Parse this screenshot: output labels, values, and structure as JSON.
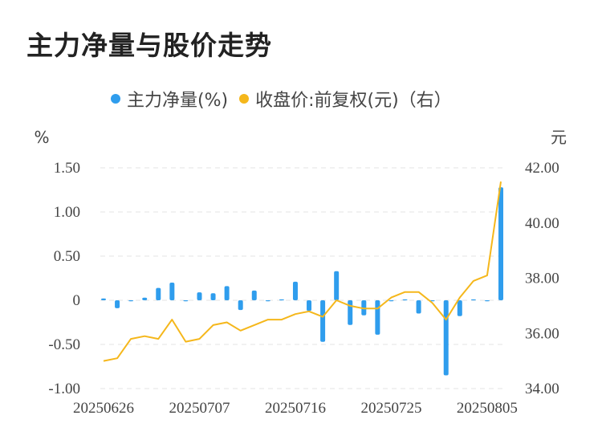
{
  "title": "主力净量与股价走势",
  "chart_data": {
    "type": "bar+line",
    "legend": [
      {
        "label": "主力净量(%)",
        "color": "#2f9ded"
      },
      {
        "label": "收盘价:前复权(元)（右）",
        "color": "#f5b71b"
      }
    ],
    "left_unit": "%",
    "right_unit": "元",
    "left_ticks": [
      "1.50",
      "1.00",
      "0.50",
      "0",
      "-0.50",
      "-1.00"
    ],
    "right_ticks": [
      "42.00",
      "40.00",
      "38.00",
      "36.00",
      "34.00"
    ],
    "left_range": [
      -1.0,
      1.5
    ],
    "right_range": [
      34.0,
      42.0
    ],
    "x_tick_labels": [
      "20250626",
      "20250707",
      "20250716",
      "20250725",
      "20250805"
    ],
    "x_tick_indices": [
      0,
      7,
      14,
      21,
      28
    ],
    "dates": [
      "20250626",
      "20250627",
      "20250630",
      "20250701",
      "20250702",
      "20250703",
      "20250704",
      "20250707",
      "20250708",
      "20250709",
      "20250710",
      "20250711",
      "20250714",
      "20250715",
      "20250716",
      "20250717",
      "20250718",
      "20250721",
      "20250722",
      "20250723",
      "20250724",
      "20250725",
      "20250728",
      "20250729",
      "20250730",
      "20250731",
      "20250801",
      "20250804",
      "20250805",
      "20250806"
    ],
    "series": [
      {
        "name": "主力净量(%)",
        "axis": "left",
        "color": "#2f9ded",
        "values": [
          0.02,
          -0.09,
          -0.01,
          0.03,
          0.14,
          0.2,
          -0.01,
          0.09,
          0.08,
          0.16,
          -0.11,
          0.11,
          -0.01,
          0.01,
          0.21,
          -0.12,
          -0.47,
          0.33,
          -0.28,
          -0.17,
          -0.39,
          0.0,
          0.01,
          -0.15,
          0.0,
          -0.85,
          -0.18,
          0.01,
          -0.01,
          1.28
        ]
      },
      {
        "name": "收盘价:前复权(元)（右）",
        "axis": "right",
        "color": "#f5b71b",
        "values": [
          35.0,
          35.1,
          35.8,
          35.9,
          35.8,
          36.5,
          35.7,
          35.8,
          36.3,
          36.4,
          36.1,
          36.3,
          36.5,
          36.5,
          36.7,
          36.8,
          36.6,
          37.2,
          37.0,
          36.9,
          36.9,
          37.3,
          37.5,
          37.5,
          37.1,
          36.5,
          37.3,
          37.9,
          38.1,
          41.5
        ]
      }
    ]
  }
}
